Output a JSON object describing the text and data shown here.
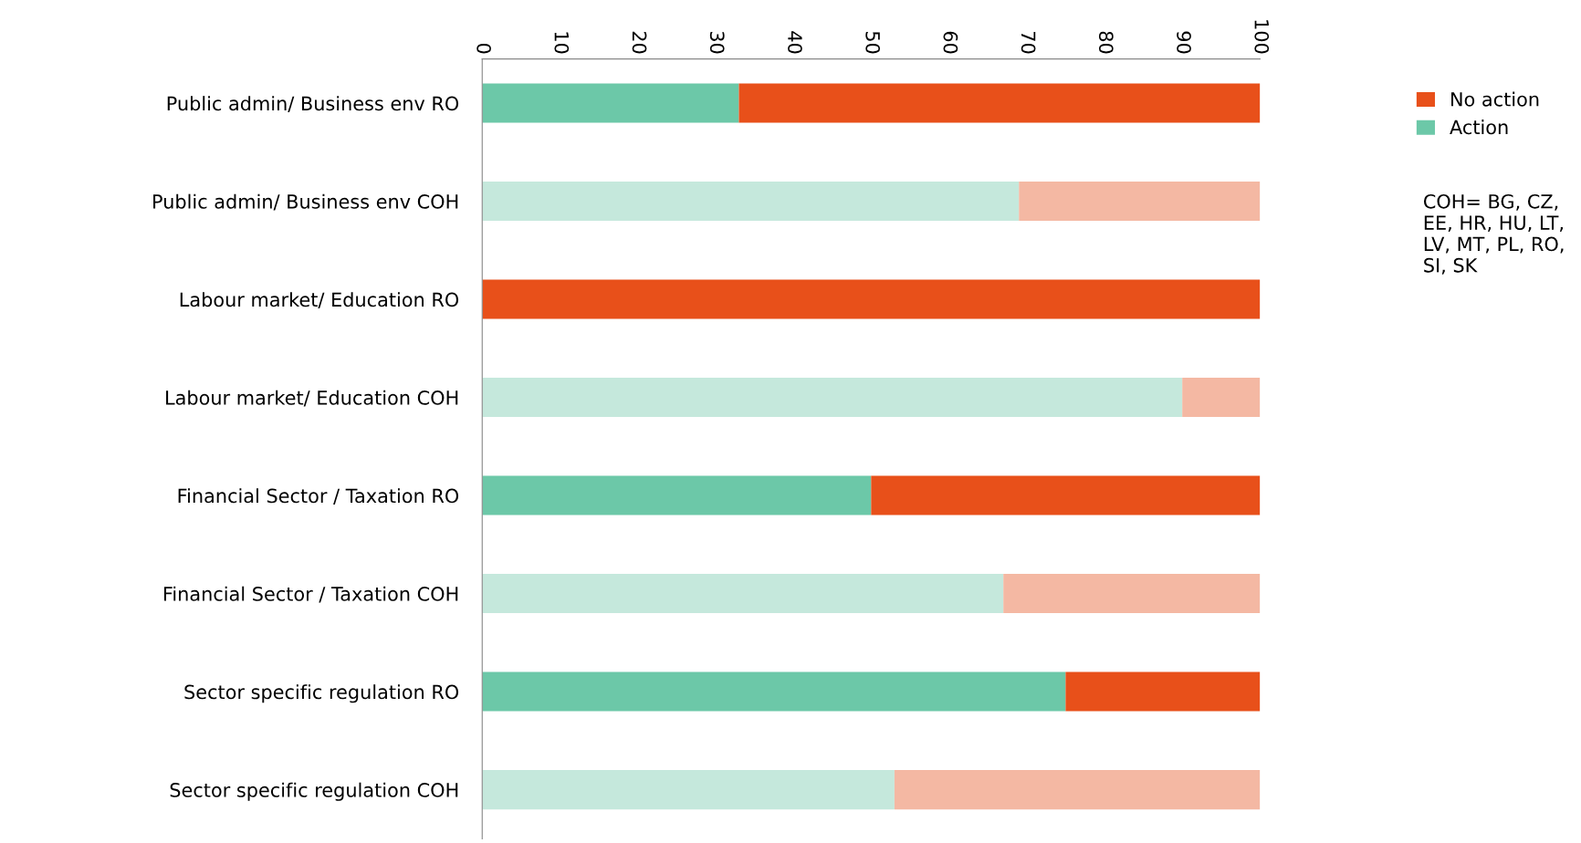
{
  "chart_data": {
    "type": "bar",
    "orientation": "horizontal",
    "stacked": true,
    "categories": [
      "Public admin/ Business env RO",
      "Public admin/ Business env COH",
      "Labour market/ Education RO",
      "Labour market/ Education COH",
      "Financial Sector / Taxation RO",
      "Financial Sector / Taxation COH",
      "Sector specific regulation RO",
      "Sector specific regulation COH"
    ],
    "series": [
      {
        "name": "Action",
        "color": "#6cc8a8",
        "colors": [
          "#6cc8a8",
          "#c5e8dc",
          "#6cc8a8",
          "#c5e8dc",
          "#6cc8a8",
          "#c5e8dc",
          "#6cc8a8",
          "#c5e8dc"
        ],
        "values": [
          33,
          69,
          0,
          90,
          50,
          67,
          75,
          53
        ]
      },
      {
        "name": "No action",
        "color": "#e8501a",
        "colors": [
          "#e8501a",
          "#f4b8a3",
          "#e8501a",
          "#f4b8a3",
          "#e8501a",
          "#f4b8a3",
          "#e8501a",
          "#f4b8a3"
        ],
        "values": [
          67,
          31,
          100,
          10,
          50,
          33,
          25,
          47
        ]
      }
    ],
    "xlim": [
      0,
      100
    ],
    "xticks": [
      0,
      10,
      20,
      30,
      40,
      50,
      60,
      70,
      80,
      90,
      100
    ],
    "legend": "top right",
    "grid": false,
    "annotations": [
      "COH= BG, CZ, EE, HR, HU, LT, LV, MT, PL, RO, SI, SK"
    ]
  }
}
